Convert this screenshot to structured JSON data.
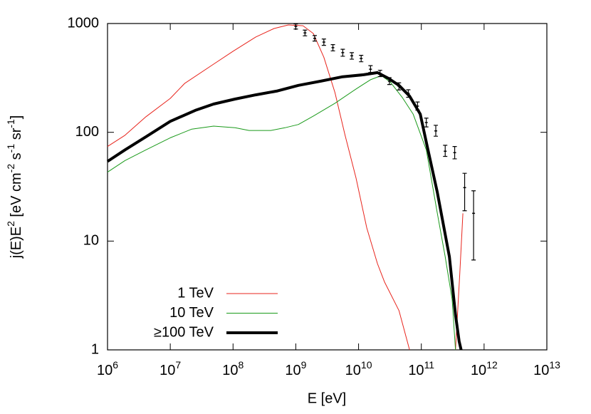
{
  "chart_data": {
    "type": "line",
    "xlabel": "E [eV]",
    "ylabel": "j(E)E^{2} [eV cm^{-2} s^{-1} sr^{-1}]",
    "xscale": "log",
    "yscale": "log",
    "xlim": [
      1000000,
      10000000000000
    ],
    "ylim": [
      1,
      1000
    ],
    "xticks": [
      {
        "value": 1000000,
        "label": "10^{6}"
      },
      {
        "value": 10000000,
        "label": "10^{7}"
      },
      {
        "value": 100000000,
        "label": "10^{8}"
      },
      {
        "value": 1000000000,
        "label": "10^{9}"
      },
      {
        "value": 10000000000,
        "label": "10^{10}"
      },
      {
        "value": 100000000000,
        "label": "10^{11}"
      },
      {
        "value": 1000000000000,
        "label": "10^{12}"
      },
      {
        "value": 10000000000000,
        "label": "10^{13}"
      }
    ],
    "yticks": [
      1,
      10,
      100,
      1000
    ],
    "legend": "lower left",
    "series": [
      {
        "name": "1 TeV",
        "color": "#e8241c",
        "linewidth": 1,
        "x": [
          1000000,
          1900000,
          4100000,
          10000000,
          17000000,
          49000000,
          100000000,
          230000000,
          450000000,
          760000000,
          1300000000,
          1900000000,
          2800000000,
          4200000000,
          6100000000,
          9100000000,
          13500000000,
          20000000000,
          26000000000,
          44000000000,
          65000000000,
          null,
          350000000000,
          410000000000,
          460000000000
        ],
        "values": [
          74,
          94,
          139,
          205,
          282,
          423,
          556,
          752,
          900,
          970,
          955,
          810,
          490,
          232,
          94,
          38,
          13.2,
          6.2,
          4.2,
          2.3,
          1,
          null,
          1,
          5,
          18
        ]
      },
      {
        "name": "10 TeV",
        "color": "#1a9a1a",
        "linewidth": 1,
        "x": [
          1000000,
          1900000,
          4100000,
          10000000,
          22000000,
          49000000,
          108000000,
          180000000,
          400000000,
          670000000,
          1100000000,
          1900000000,
          4200000000,
          9100000000,
          15500000000,
          23000000000,
          32000000000,
          50000000000,
          74000000000,
          120000000000,
          180000000000,
          240000000000,
          310000000000,
          350000000000
        ],
        "values": [
          43,
          55,
          69,
          89,
          107,
          114,
          110,
          104,
          104,
          110,
          118,
          141,
          185,
          250,
          304,
          332,
          290,
          208,
          147,
          69,
          18,
          7.2,
          2.9,
          1
        ]
      },
      {
        "name": "≥100 TeV",
        "color": "#000000",
        "linewidth": 4,
        "x": [
          1000000,
          1900000,
          4100000,
          10000000,
          25000000,
          49000000,
          108000000,
          230000000,
          510000000,
          1100000000,
          2500000000,
          5400000000,
          12000000000,
          20000000000,
          30000000000,
          44000000000,
          65000000000,
          96000000000,
          120000000000,
          180000000000,
          280000000000,
          350000000000,
          400000000000,
          430000000000
        ],
        "values": [
          54,
          69,
          91,
          126,
          159,
          182,
          202,
          221,
          240,
          270,
          295,
          323,
          338,
          354,
          313,
          270,
          215,
          147,
          81,
          28,
          7.2,
          2.1,
          1.2,
          1
        ]
      }
    ],
    "points": {
      "color": "#000000",
      "x": [
        1000000000,
        1400000000,
        2000000000,
        2800000000,
        3900000000,
        5600000000,
        7800000000,
        11000000000,
        15500000000,
        22000000000,
        31000000000,
        44000000000,
        62000000000,
        87000000000,
        120000000000,
        170000000000,
        240000000000,
        340000000000,
        490000000000,
        680000000000
      ],
      "values": [
        940,
        820,
        730,
        675,
        600,
        540,
        505,
        477,
        380,
        348,
        295,
        265,
        228,
        174,
        123,
        103,
        67,
        65,
        31,
        18
      ],
      "lower": [
        890,
        770,
        690,
        630,
        560,
        500,
        470,
        445,
        355,
        325,
        275,
        245,
        210,
        160,
        112,
        92,
        60,
        57,
        19,
        6.7
      ],
      "upper": [
        990,
        870,
        775,
        720,
        640,
        580,
        540,
        510,
        410,
        372,
        318,
        285,
        246,
        190,
        135,
        116,
        76,
        74,
        42,
        29
      ]
    }
  }
}
